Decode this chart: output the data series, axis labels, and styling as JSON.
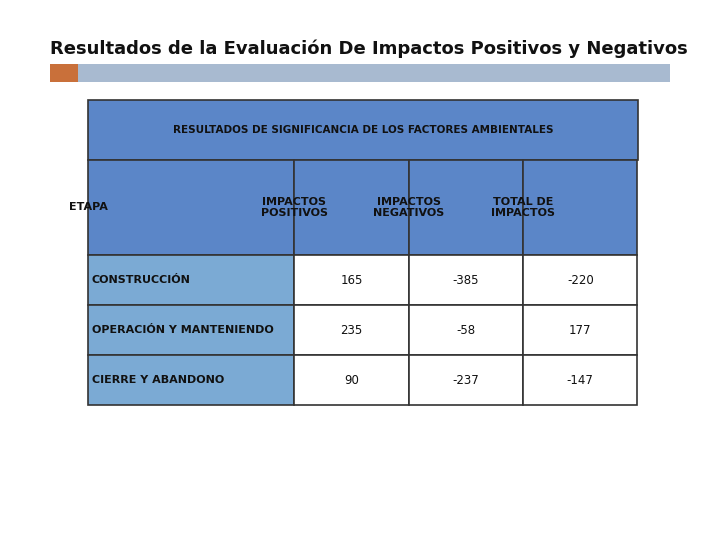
{
  "title": "Resultados de la Evaluación De Impactos Positivos y Negativos",
  "title_fontsize": 13,
  "title_fontweight": "bold",
  "bg_color": "#ffffff",
  "accent_orange": "#C9703A",
  "accent_blue": "#A8BAD0",
  "header_blue": "#5B86C8",
  "data_row_blue": "#7BAAD4",
  "border_color": "#333333",
  "main_header_text": "RESULTADOS DE SIGNIFICANCIA DE LOS FACTORES AMBIENTALES",
  "col_headers": [
    "ETAPA",
    "IMPACTOS\nPOSITIVOS",
    "IMPACTOS\nNEGATIVOS",
    "TOTAL DE\nIMPACTOS"
  ],
  "rows": [
    [
      "CONSTRUCCIÓN",
      "165",
      "-385",
      "-220"
    ],
    [
      "OPERACIÓN Y MANTENIENDO",
      "235",
      "-58",
      "177"
    ],
    [
      "CIERRE Y ABANDONO",
      "90",
      "-237",
      "-147"
    ]
  ]
}
